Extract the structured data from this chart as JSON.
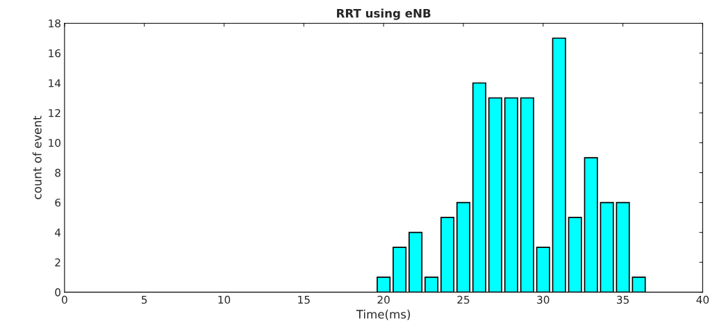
{
  "chart_data": {
    "type": "bar",
    "title": "RRT using eNB",
    "xlabel": "Time(ms)",
    "ylabel": "count of event",
    "x": [
      20,
      21,
      22,
      23,
      24,
      25,
      26,
      27,
      28,
      29,
      30,
      31,
      32,
      33,
      34,
      35,
      36
    ],
    "series": [
      {
        "color": "#00ffff",
        "values": [
          1,
          3,
          4,
          1,
          5,
          6,
          14,
          13,
          13,
          13,
          3,
          17,
          5,
          9,
          6,
          6,
          1
        ]
      }
    ],
    "xlim": [
      0,
      40
    ],
    "xticks": [
      0,
      5,
      10,
      15,
      20,
      25,
      30,
      35,
      40
    ],
    "ylim": [
      0,
      18
    ],
    "yticks": [
      0,
      2,
      4,
      6,
      8,
      10,
      12,
      14,
      16,
      18
    ],
    "grid": false,
    "legend": false
  }
}
